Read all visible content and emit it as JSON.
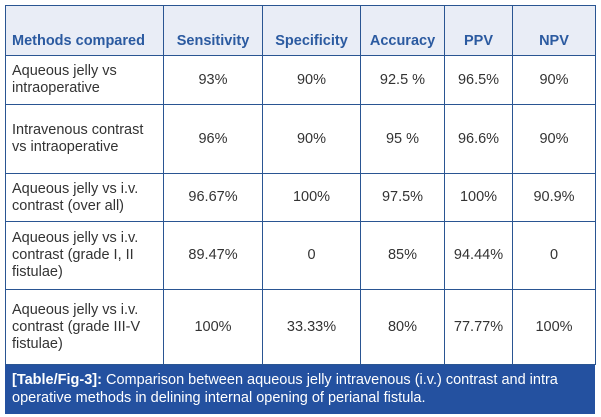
{
  "table": {
    "headers": [
      "Methods compared",
      "Sensitivity",
      "Specificity",
      "Accuracy",
      "PPV",
      "NPV"
    ],
    "rows": [
      [
        "Aqueous jelly vs intraoperative",
        "93%",
        "90%",
        "92.5 %",
        "96.5%",
        "90%"
      ],
      [
        "Intravenous contrast vs intraoperative",
        "96%",
        "90%",
        "95 %",
        "96.6%",
        "90%"
      ],
      [
        "Aqueous jelly vs i.v. contrast (over all)",
        "96.67%",
        "100%",
        "97.5%",
        "100%",
        "90.9%"
      ],
      [
        "Aqueous jelly vs i.v. contrast (grade I, II fistulae)",
        "89.47%",
        "0",
        "85%",
        "94.44%",
        "0"
      ],
      [
        "Aqueous jelly vs i.v. contrast (grade III-V fistulae)",
        "100%",
        "33.33%",
        "80%",
        "77.77%",
        "100%"
      ]
    ]
  },
  "caption": {
    "label": "[Table/Fig-3]:",
    "text": " Comparison between aqueous jelly intravenous (i.v.) contrast and intra operative methods in delining internal opening of perianal fistula."
  }
}
